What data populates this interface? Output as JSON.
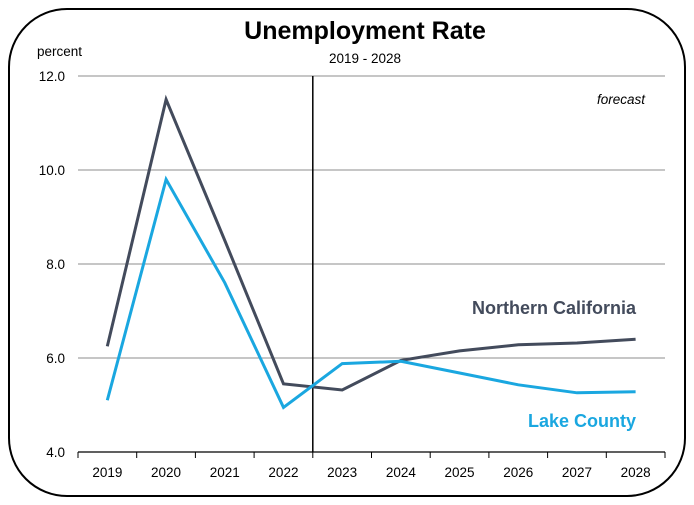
{
  "chart_data": {
    "type": "line",
    "title": "Unemployment Rate",
    "subtitle": "2019 - 2028",
    "ylabel": "percent",
    "xlabel": "",
    "ylim": [
      4.0,
      12.0
    ],
    "y_ticks": [
      "4.0",
      "6.0",
      "8.0",
      "10.0",
      "12.0"
    ],
    "y_tick_values": [
      4,
      6,
      8,
      10,
      12
    ],
    "categories": [
      "2019",
      "2020",
      "2021",
      "2022",
      "2023",
      "2024",
      "2025",
      "2026",
      "2027",
      "2028"
    ],
    "grid": "horizontal",
    "forecast_start": "2023",
    "forecast_label": "forecast",
    "series": [
      {
        "name": "Northern California",
        "color": "#434b5c",
        "values": [
          6.25,
          11.5,
          8.5,
          5.45,
          5.32,
          5.95,
          6.15,
          6.28,
          6.32,
          6.4
        ]
      },
      {
        "name": "Lake County",
        "color": "#1aa7e0",
        "values": [
          5.1,
          9.8,
          7.6,
          4.95,
          5.88,
          5.93,
          5.68,
          5.43,
          5.26,
          5.28
        ]
      }
    ]
  }
}
